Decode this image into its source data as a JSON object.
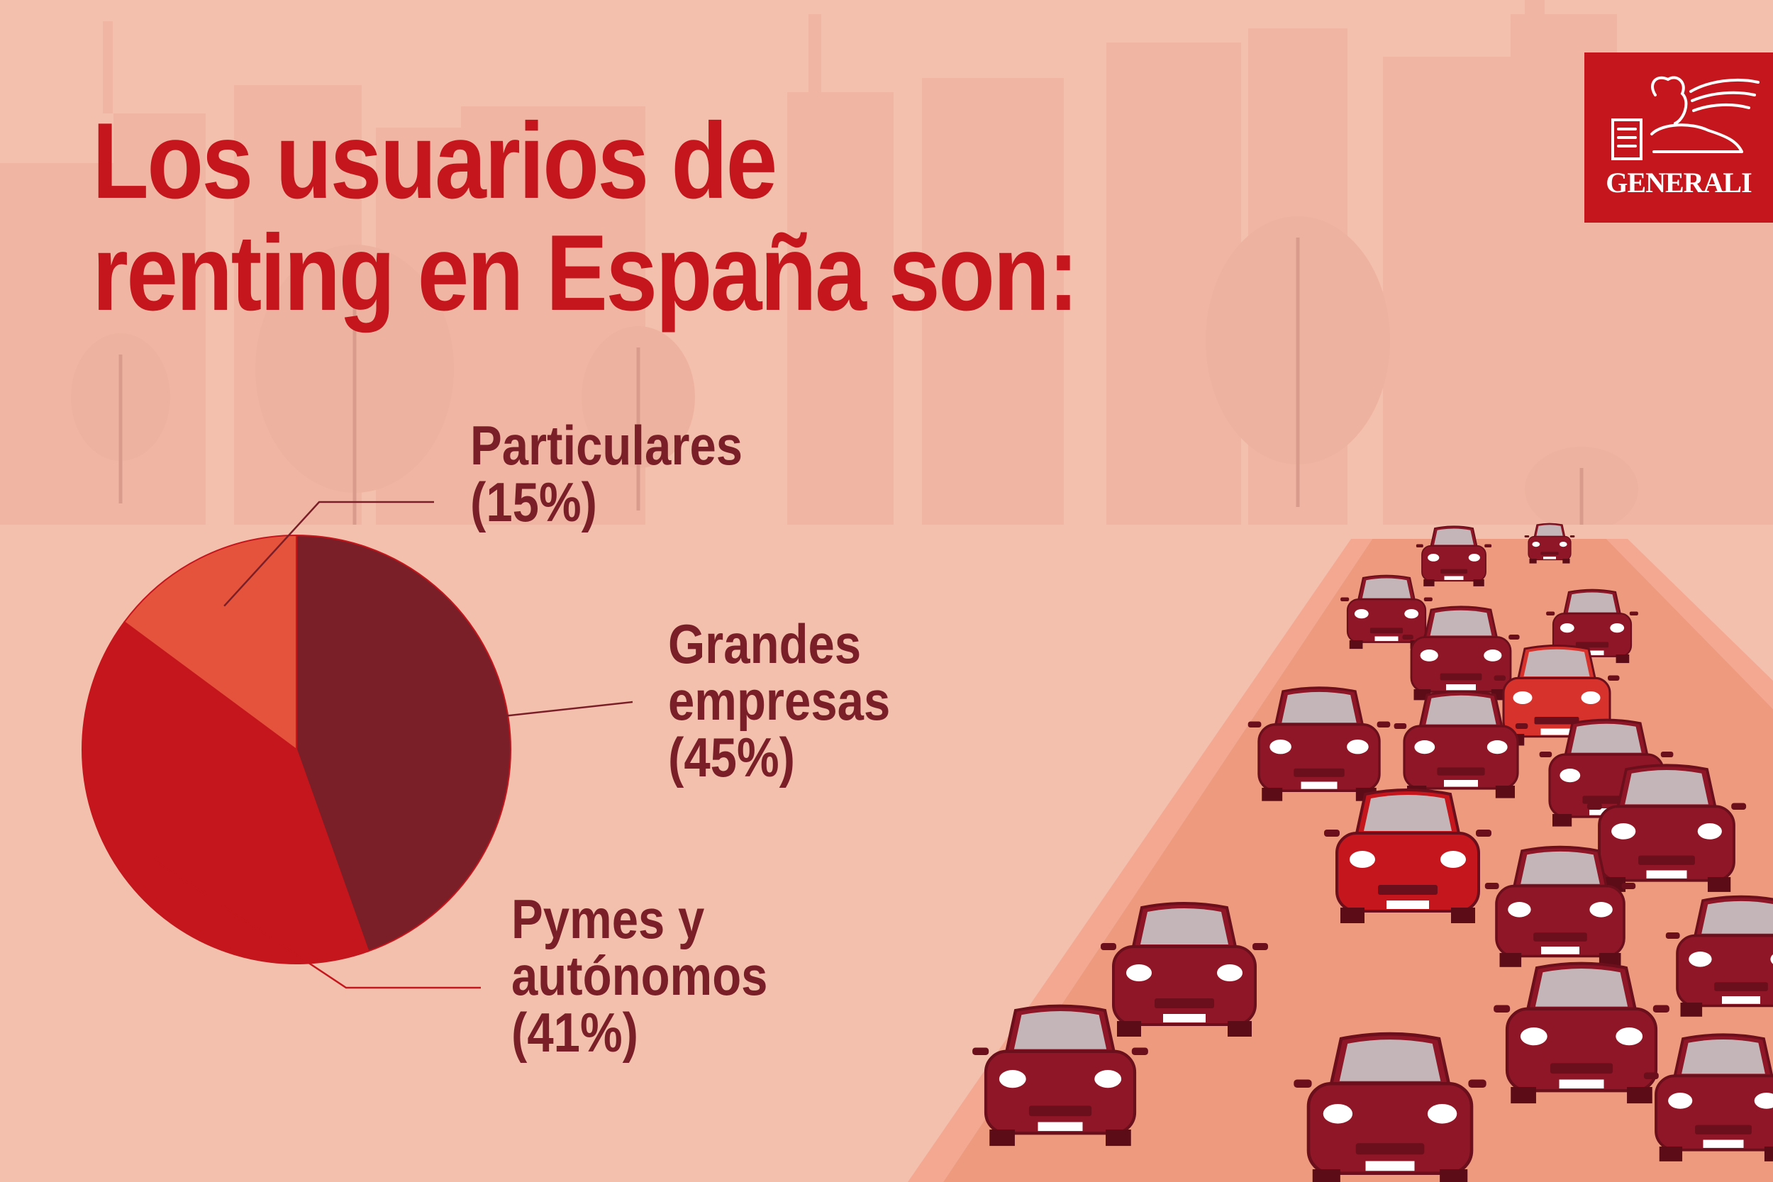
{
  "title_lines": [
    "Los usuarios de",
    "renting en España son:"
  ],
  "logo": {
    "text": "GENERALI",
    "icon": "winged-lion-icon",
    "color": "#c4161c"
  },
  "chart_data": {
    "type": "pie",
    "title": "Los usuarios de renting en España son:",
    "slices": [
      {
        "label": "Particulares",
        "value": 15,
        "color": "#e5533d",
        "label_lines": [
          "Particulares",
          "(15%)"
        ]
      },
      {
        "label": "Grandes empresas",
        "value": 45,
        "color": "#7a1f28",
        "label_lines": [
          "Grandes",
          "empresas",
          "(45%)"
        ]
      },
      {
        "label": "Pymes y autónomos",
        "value": 41,
        "color": "#c4161c",
        "label_lines": [
          "Pymes y",
          "autónomos",
          "(41%)"
        ]
      }
    ]
  },
  "colors": {
    "background": "#f3c0ae",
    "accent": "#c4161c",
    "label_text": "#7a1f28",
    "road": "#ee9a7f",
    "car_body": "#8f1626",
    "car_glass": "#c4b6b8"
  }
}
